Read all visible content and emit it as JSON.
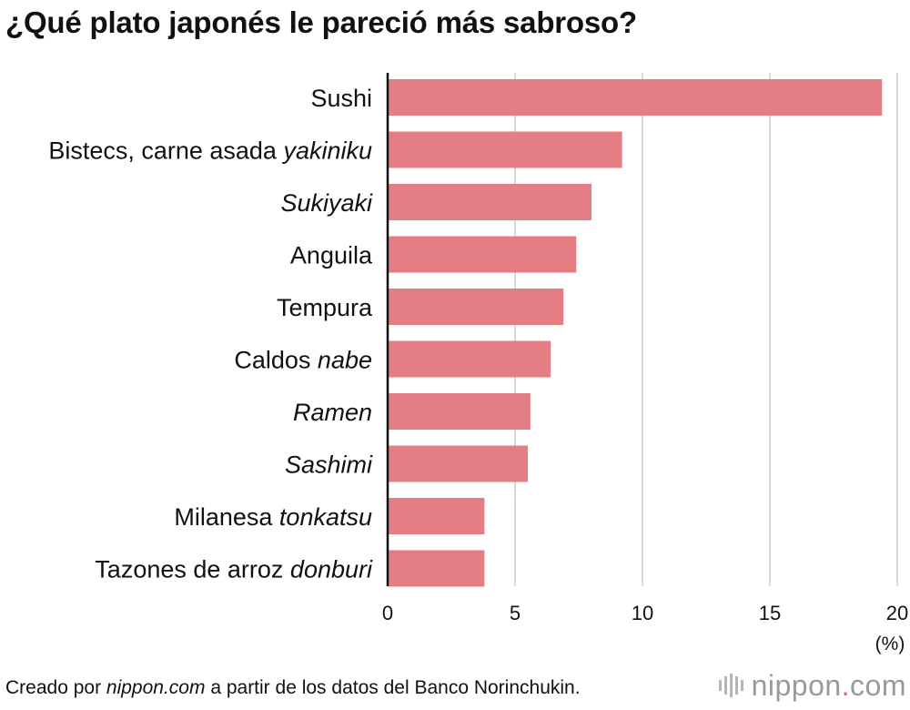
{
  "title": "¿Qué plato japonés le pareció más sabroso?",
  "chart_data": {
    "type": "bar",
    "orientation": "horizontal",
    "title": "¿Qué plato japonés le pareció más sabroso?",
    "categories": [
      {
        "text": "Sushi",
        "italic": ""
      },
      {
        "text": "Bistecs, carne asada ",
        "italic": "yakiniku"
      },
      {
        "text": "",
        "italic": "Sukiyaki"
      },
      {
        "text": "Anguila",
        "italic": ""
      },
      {
        "text": "Tempura",
        "italic": ""
      },
      {
        "text": "Caldos ",
        "italic": "nabe"
      },
      {
        "text": "",
        "italic": "Ramen"
      },
      {
        "text": "",
        "italic": "Sashimi"
      },
      {
        "text": "Milanesa ",
        "italic": "tonkatsu"
      },
      {
        "text": "Tazones de arroz ",
        "italic": "donburi"
      }
    ],
    "values": [
      19.4,
      9.2,
      8.0,
      7.4,
      6.9,
      6.4,
      5.6,
      5.5,
      3.8,
      3.8
    ],
    "xlim": [
      0,
      20
    ],
    "xticks": [
      "0",
      "5",
      "10",
      "15",
      "20"
    ],
    "unit": "(%)",
    "bar_color": "#e47d84",
    "grid": true,
    "gridline_color": "#cccccc"
  },
  "footer": {
    "prefix": "Creado por ",
    "italic": "nippon.com",
    "suffix": " a partir de los datos del Banco Norinchukin."
  },
  "brand": {
    "name": "nippon",
    "dot": ".",
    "tld": "com",
    "logo_icon": "nippon-logo-icon"
  }
}
